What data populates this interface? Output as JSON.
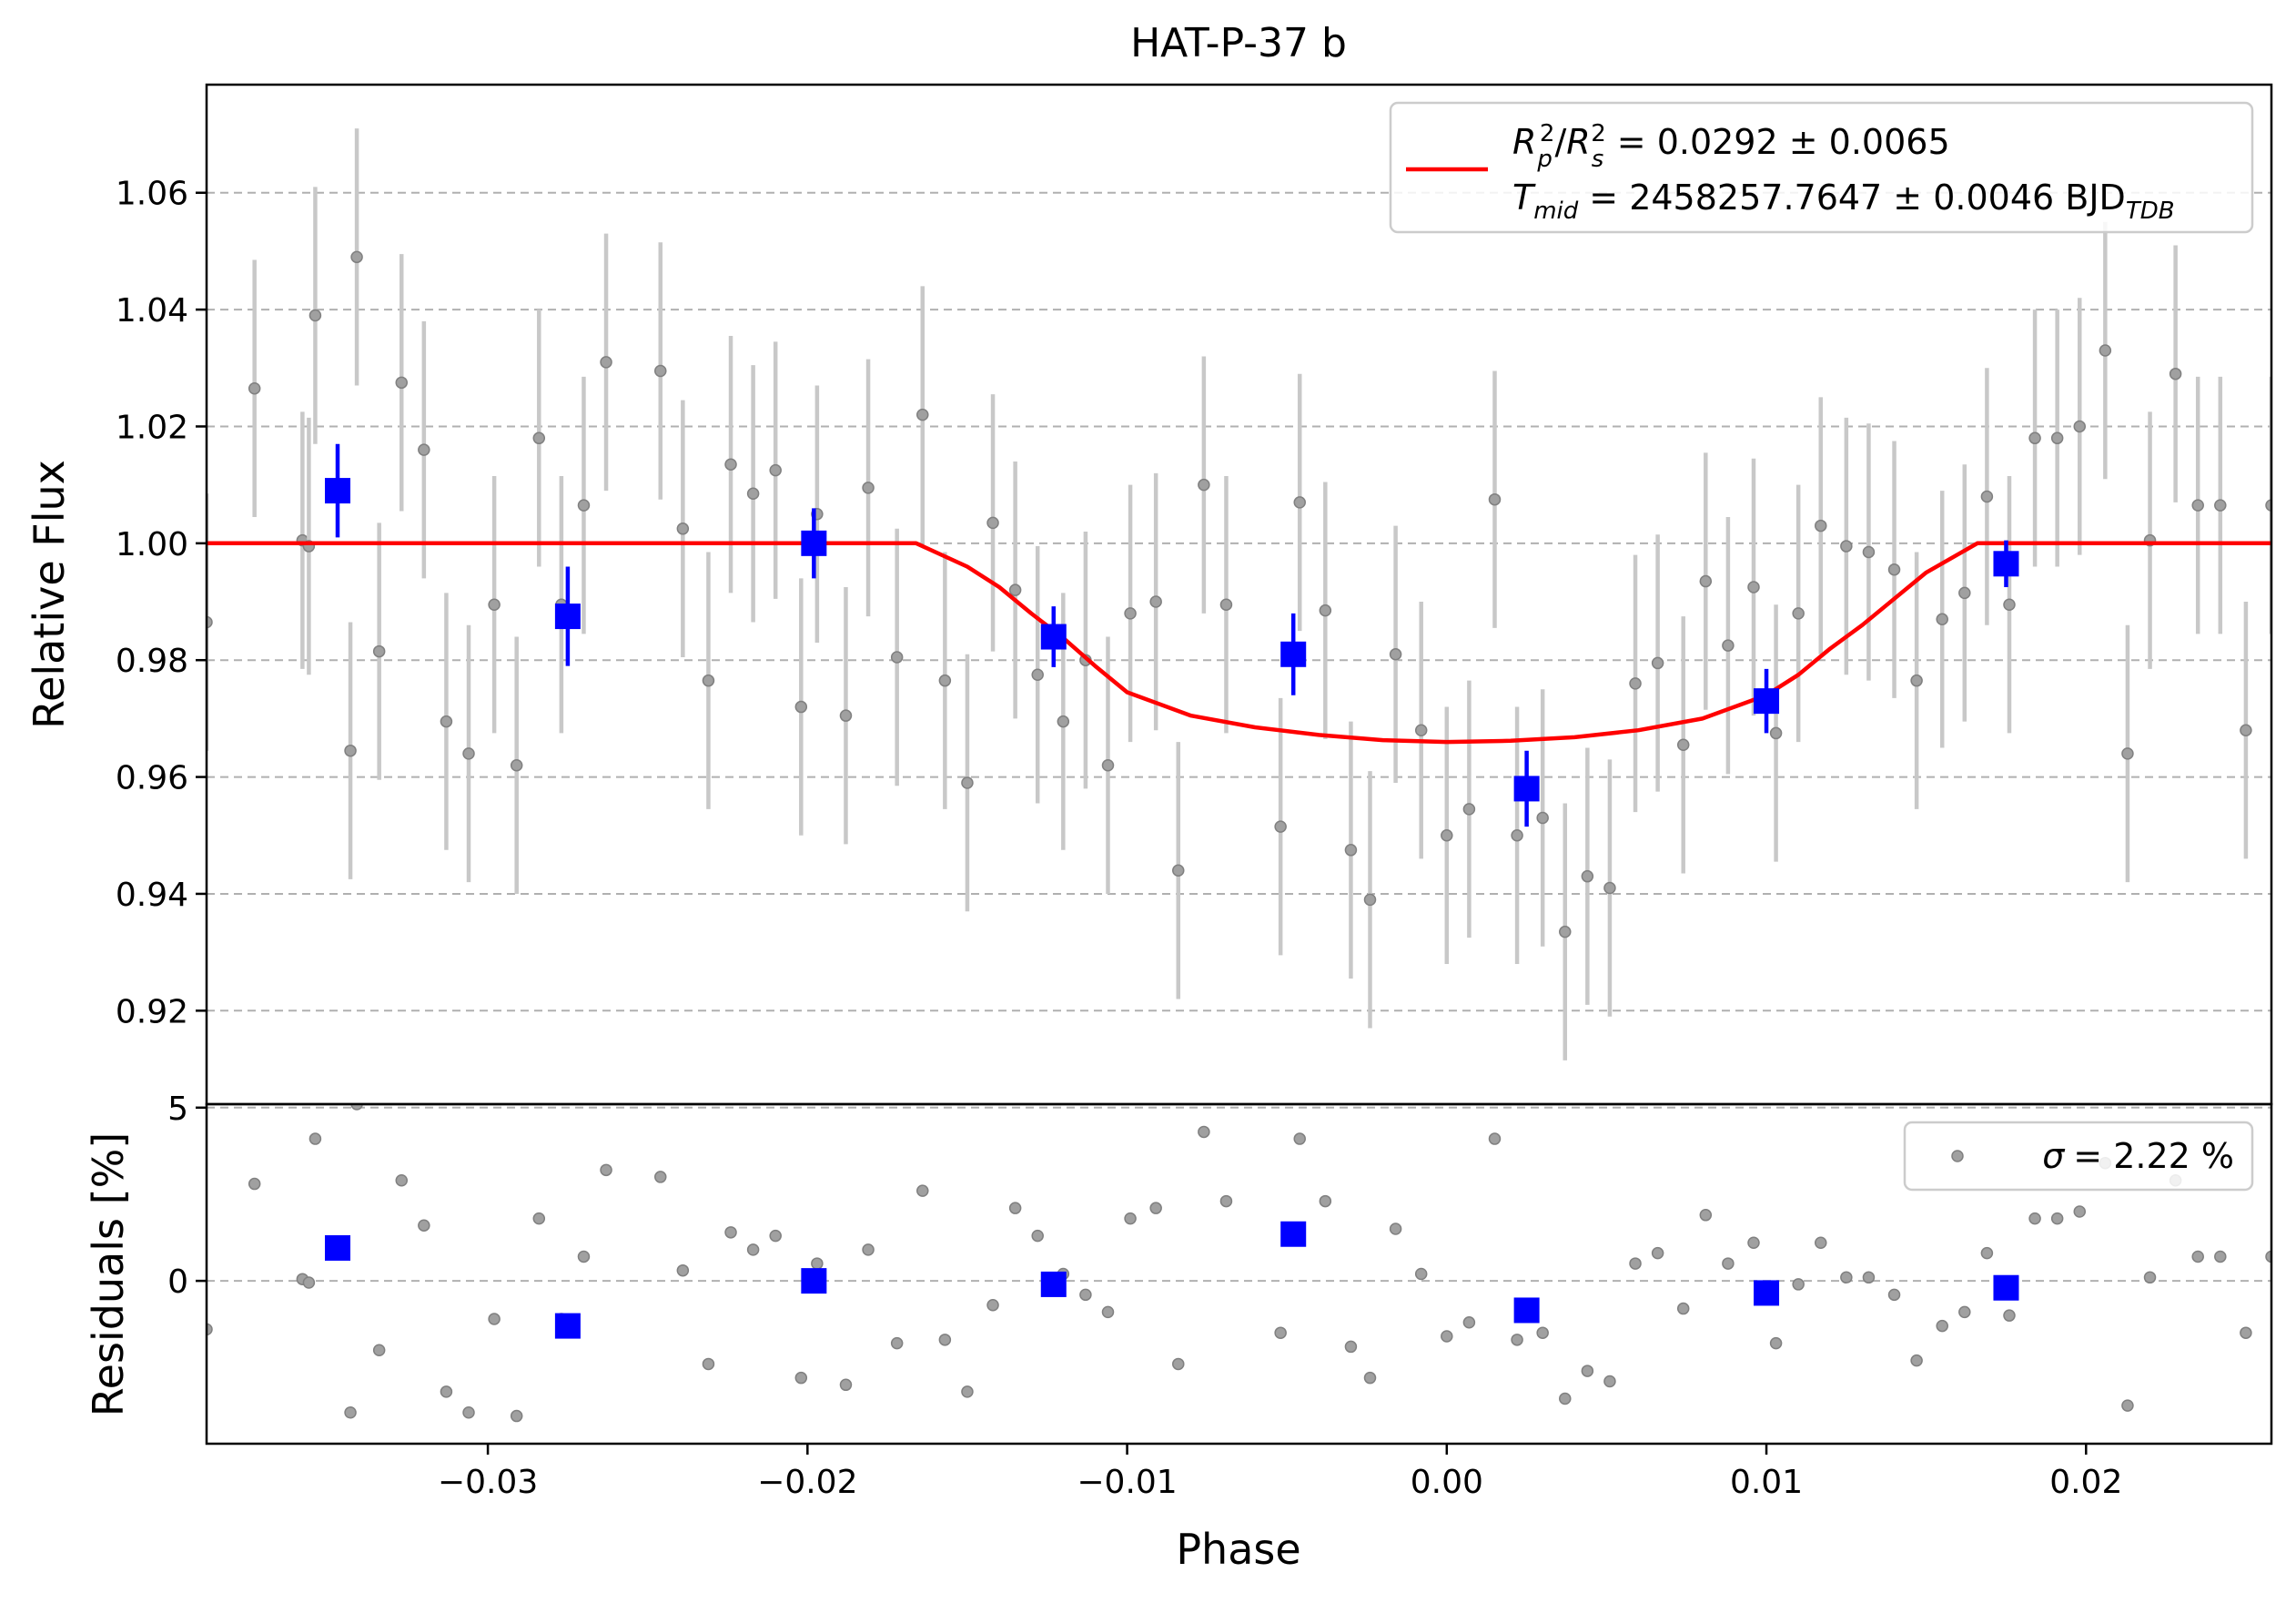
{
  "chart_data": [
    {
      "type": "scatter",
      "panel": "main",
      "title": "HAT-P-37 b",
      "xlabel": "",
      "ylabel": "Relative Flux",
      "xlim": [
        -0.0388,
        0.0258
      ],
      "ylim": [
        0.904,
        1.0785
      ],
      "yticks": [
        0.92,
        0.94,
        0.96,
        0.98,
        1.0,
        1.02,
        1.04,
        1.06
      ],
      "ytick_labels": [
        "0.92",
        "0.94",
        "0.96",
        "0.98",
        "1.00",
        "1.02",
        "1.04",
        "1.06"
      ],
      "grid": "y-dashed",
      "legend_position": "top-right",
      "legend": {
        "line1": {
          "lhs": "R",
          "lhs_sub": "p",
          "lhs_sup": "2",
          "slash": "/",
          "rhs": "R",
          "rhs_sub": "s",
          "rhs_sup": "2",
          "value": "= 0.0292 ± 0.0065"
        },
        "line2": {
          "lhs": "T",
          "lhs_sub": "mid",
          "value": "= 2458257.7647 ± 0.0046 BJD",
          "unit_sub": "TDB"
        }
      },
      "raw_points": {
        "x": [
          -0.0388,
          -0.0373,
          -0.0358,
          -0.0356,
          -0.0354,
          -0.0343,
          -0.0341,
          -0.0334,
          -0.0327,
          -0.032,
          -0.0313,
          -0.0306,
          -0.0298,
          -0.0291,
          -0.0284,
          -0.0277,
          -0.027,
          -0.0263,
          -0.0246,
          -0.0239,
          -0.0231,
          -0.0224,
          -0.0217,
          -0.021,
          -0.0202,
          -0.0197,
          -0.0188,
          -0.0181,
          -0.0172,
          -0.0164,
          -0.0157,
          -0.015,
          -0.0142,
          -0.0135,
          -0.0128,
          -0.012,
          -0.0113,
          -0.0106,
          -0.0099,
          -0.0091,
          -0.0084,
          -0.0076,
          -0.0069,
          -0.0052,
          -0.0046,
          -0.0038,
          -0.003,
          -0.0024,
          -0.0016,
          -0.0008,
          0.0,
          0.0007,
          0.0015,
          0.0022,
          0.003,
          0.0037,
          0.0044,
          0.0051,
          0.0059,
          0.0066,
          0.0074,
          0.0081,
          0.0088,
          0.0096,
          0.0103,
          0.011,
          0.0117,
          0.0125,
          0.0132,
          0.014,
          0.0147,
          0.0155,
          0.0162,
          0.0169,
          0.0176,
          0.0184,
          0.0191,
          0.0198,
          0.0206,
          0.0213,
          0.022,
          0.0228,
          0.0235,
          0.0242,
          0.025,
          0.0258
        ],
        "y": [
          0.9865,
          1.0265,
          1.0005,
          0.9995,
          1.039,
          0.9645,
          1.049,
          0.9815,
          1.0275,
          1.016,
          0.9695,
          0.964,
          0.9895,
          0.962,
          1.018,
          0.9895,
          1.0065,
          1.031,
          1.0295,
          1.0025,
          0.9765,
          1.0135,
          1.0085,
          1.0125,
          0.972,
          1.005,
          0.9705,
          1.0095,
          0.9805,
          1.022,
          0.9765,
          0.959,
          1.0035,
          0.992,
          0.9775,
          0.9695,
          0.98,
          0.962,
          0.988,
          0.99,
          0.944,
          1.01,
          0.9895,
          0.9515,
          1.007,
          0.9885,
          0.9475,
          0.939,
          0.981,
          0.968,
          0.95,
          0.9545,
          1.0075,
          0.95,
          0.953,
          0.9335,
          0.943,
          0.941,
          0.976,
          0.9795,
          0.9655,
          0.9935,
          0.9825,
          0.9925,
          0.9675,
          0.988,
          1.003,
          0.9995,
          0.9985,
          0.9955,
          0.9765,
          0.987,
          0.9915,
          1.008,
          0.9895,
          1.018,
          1.018,
          1.02,
          1.033,
          0.964,
          1.0005,
          1.029,
          1.0065,
          1.0065,
          0.968,
          1.0065
        ],
        "yerr": 0.022
      },
      "binned_points": {
        "x": [
          -0.0347,
          -0.0275,
          -0.0198,
          -0.0123,
          -0.0048,
          0.0025,
          0.01,
          0.0175
        ],
        "y": [
          1.009,
          0.9875,
          1.0,
          0.984,
          0.981,
          0.958,
          0.973,
          0.9965
        ],
        "yerr": [
          0.008,
          0.0085,
          0.006,
          0.0052,
          0.007,
          0.0065,
          0.0055,
          0.004
        ]
      },
      "model": {
        "x": [
          -0.0388,
          -0.0166,
          -0.015,
          -0.014,
          -0.013,
          -0.012,
          -0.011,
          -0.01,
          -0.008,
          -0.006,
          -0.004,
          -0.002,
          0.0,
          0.002,
          0.004,
          0.006,
          0.008,
          0.01,
          0.011,
          0.012,
          0.013,
          0.014,
          0.015,
          0.0166,
          0.0258
        ],
        "y": [
          1.0,
          1.0,
          0.996,
          0.9925,
          0.988,
          0.9838,
          0.979,
          0.9745,
          0.9705,
          0.9685,
          0.9672,
          0.9663,
          0.966,
          0.9662,
          0.9668,
          0.968,
          0.97,
          0.974,
          0.9775,
          0.982,
          0.986,
          0.9905,
          0.995,
          1.0,
          1.0
        ],
        "color": "#ff0000"
      },
      "colors": {
        "raw": "#808080",
        "raw_err": "#c8c8c8",
        "binned": "#0000ff",
        "grid": "#b0b0b0"
      }
    },
    {
      "type": "scatter",
      "panel": "residuals",
      "xlabel": "Phase",
      "ylabel": "Residuals [%]",
      "xlim": [
        -0.0388,
        0.0258
      ],
      "ylim": [
        -4.7,
        5.1
      ],
      "yticks": [
        0,
        5
      ],
      "ytick_labels": [
        "0",
        "5"
      ],
      "xticks": [
        -0.03,
        -0.02,
        -0.01,
        0.0,
        0.01,
        0.02
      ],
      "xtick_labels": [
        "−0.03",
        "−0.02",
        "−0.01",
        "0.00",
        "0.01",
        "0.02"
      ],
      "grid": "y-dashed",
      "legend_position": "top-right",
      "legend": {
        "sigma": "σ",
        "value": "= 2.22 %"
      },
      "raw_residuals": [
        -1.4,
        2.8,
        0.05,
        -0.05,
        4.1,
        -3.8,
        5.1,
        -2.0,
        2.9,
        1.6,
        -3.2,
        -3.8,
        -1.1,
        -3.9,
        1.8,
        -1.1,
        0.7,
        3.2,
        3.0,
        0.3,
        -2.4,
        1.4,
        0.9,
        1.3,
        -2.8,
        0.5,
        -3.0,
        0.9,
        -1.8,
        2.6,
        -1.7,
        -3.2,
        -0.7,
        2.1,
        1.3,
        0.2,
        -0.4,
        -0.9,
        1.8,
        2.1,
        -2.4,
        4.3,
        2.3,
        -1.5,
        4.1,
        2.3,
        -1.9,
        -2.8,
        1.5,
        0.2,
        -1.6,
        -1.2,
        4.1,
        -1.7,
        -1.5,
        -3.4,
        -2.6,
        -2.9,
        0.5,
        0.8,
        -0.8,
        1.9,
        0.5,
        1.1,
        -1.8,
        -0.1,
        1.1,
        0.1,
        0.1,
        -0.4,
        -2.3,
        -1.3,
        -0.9,
        0.8,
        -1.0,
        1.8,
        1.8,
        2.0,
        3.4,
        -3.6,
        0.1,
        2.9,
        0.7,
        0.7,
        -1.5,
        0.7
      ],
      "binned_residuals": [
        0.95,
        -1.3,
        0.0,
        -0.1,
        1.35,
        -0.85,
        -0.35,
        -0.2
      ]
    }
  ]
}
